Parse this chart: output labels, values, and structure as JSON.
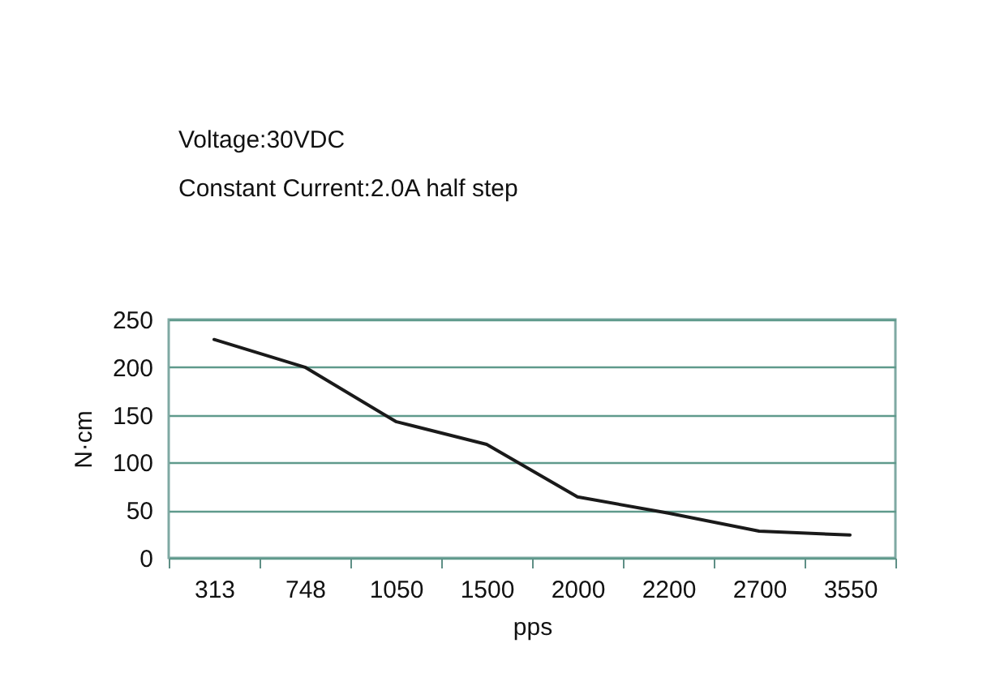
{
  "chart_data": {
    "type": "line",
    "title": "Voltage:30VDC",
    "subtitle": "Constant Current:2.0A half step",
    "xlabel": "pps",
    "ylabel": "N·cm",
    "categories": [
      "313",
      "748",
      "1050",
      "1500",
      "2000",
      "2200",
      "2700",
      "3550"
    ],
    "series": [
      {
        "color": "#1a1a1a",
        "values": [
          229,
          200,
          143,
          119,
          64,
          47,
          28,
          24
        ]
      }
    ],
    "ylim": [
      0,
      250
    ],
    "yticks": [
      0,
      50,
      100,
      150,
      200,
      250
    ],
    "grid": "y",
    "line_style": "solid"
  }
}
